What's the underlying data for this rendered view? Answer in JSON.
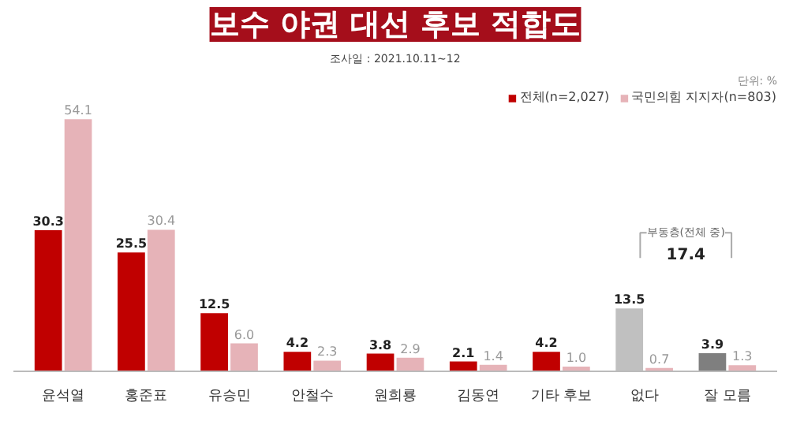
{
  "chart_data": {
    "type": "bar",
    "title": "보수 야권 대선 후보 적합도",
    "subtitle": "조사일 : 2021.10.11~12",
    "categories": [
      "윤석열",
      "홍준표",
      "유승민",
      "안철수",
      "원희룡",
      "김동연",
      "기타 후보",
      "없다",
      "잘 모름"
    ],
    "series": [
      {
        "name": "전체(n=2,027)",
        "color": "#c00000",
        "colors": [
          "#c00000",
          "#c00000",
          "#c00000",
          "#c00000",
          "#c00000",
          "#c00000",
          "#c00000",
          "#c0c0c0",
          "#7f7f7f"
        ],
        "values": [
          30.3,
          25.5,
          12.5,
          4.2,
          3.8,
          2.1,
          4.2,
          13.5,
          3.9
        ]
      },
      {
        "name": "국민의힘 지지자(n=803)",
        "color": "#e6b3b8",
        "values": [
          54.1,
          30.4,
          6.0,
          2.3,
          2.9,
          1.4,
          1.0,
          0.7,
          1.3
        ],
        "value_labels": [
          "54.1",
          "30.4",
          "6.0",
          "2.3",
          "2.9",
          "1.4",
          "1.0",
          "0.7",
          "1.3"
        ]
      }
    ],
    "annotations": [
      "부동층(전체 중)",
      "17.4",
      "단위: %"
    ],
    "data_labels": true,
    "legend": "top right",
    "grid": false
  }
}
